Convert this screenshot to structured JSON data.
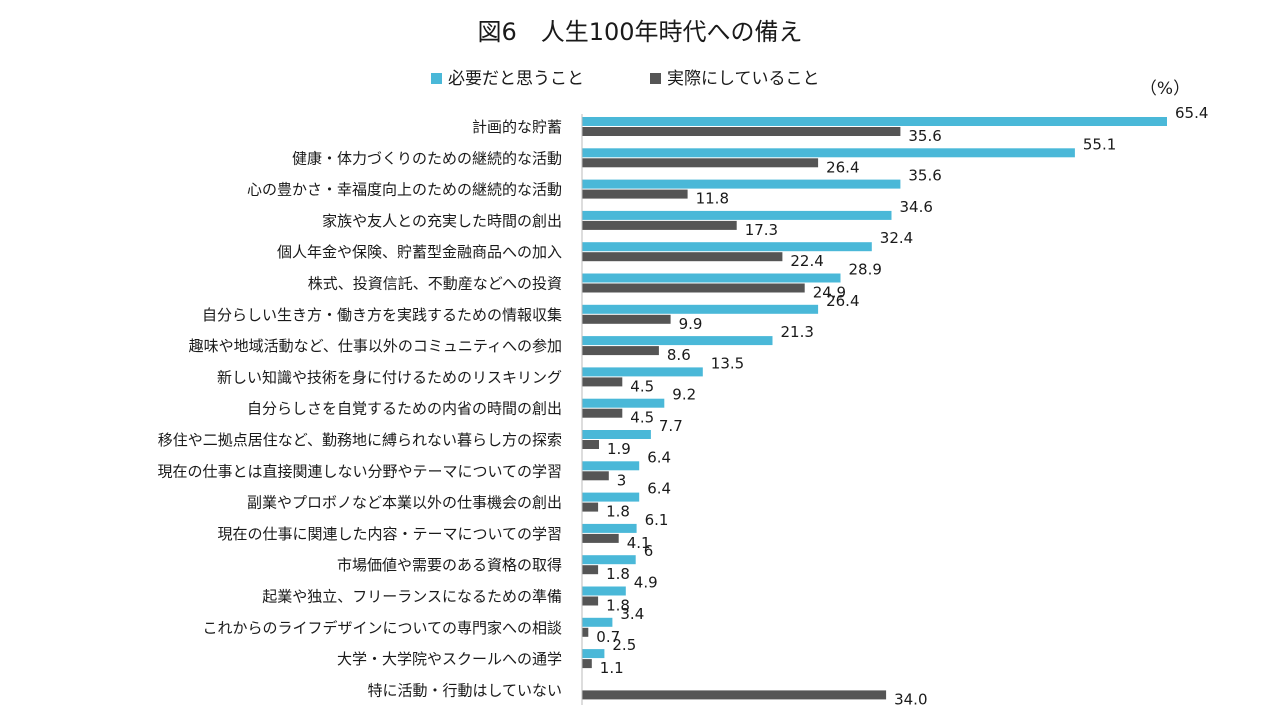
{
  "chart_data": {
    "type": "bar",
    "orientation": "horizontal",
    "title": "図6　人生100年時代への備え",
    "unit_label": "（%）",
    "legend_position": "top",
    "xlim": [
      0,
      65.4
    ],
    "categories": [
      "計画的な貯蓄",
      "健康・体力づくりのための継続的な活動",
      "心の豊かさ・幸福度向上のための継続的な活動",
      "家族や友人との充実した時間の創出",
      "個人年金や保険、貯蓄型金融商品への加入",
      "株式、投資信託、不動産などへの投資",
      "自分らしい生き方・働き方を実践するための情報収集",
      "趣味や地域活動など、仕事以外のコミュニティへの参加",
      "新しい知識や技術を身に付けるためのリスキリング",
      "自分らしさを自覚するための内省の時間の創出",
      "移住や二拠点居住など、勤務地に縛られない暮らし方の探索",
      "現在の仕事とは直接関連しない分野やテーマについての学習",
      "副業やプロボノなど本業以外の仕事機会の創出",
      "現在の仕事に関連した内容・テーマについての学習",
      "市場価値や需要のある資格の取得",
      "起業や独立、フリーランスになるための準備",
      "これからのライフデザインについての専門家への相談",
      "大学・大学院やスクールへの通学",
      "特に活動・行動はしていない"
    ],
    "series": [
      {
        "name": "必要だと思うこと",
        "color": "#4ab8d8",
        "values": [
          65.4,
          55.1,
          35.6,
          34.6,
          32.4,
          28.9,
          26.4,
          21.3,
          13.5,
          9.2,
          7.7,
          6.4,
          6.4,
          6.1,
          6,
          4.9,
          3.4,
          2.5,
          null
        ],
        "labels": [
          "65.4",
          "55.1",
          "35.6",
          "34.6",
          "32.4",
          "28.9",
          "26.4",
          "21.3",
          "13.5",
          "9.2",
          "7.7",
          "6.4",
          "6.4",
          "6.1",
          "6",
          "4.9",
          "3.4",
          "2.5",
          ""
        ]
      },
      {
        "name": "実際にしていること",
        "color": "#555555",
        "values": [
          35.6,
          26.4,
          11.8,
          17.3,
          22.4,
          24.9,
          9.9,
          8.6,
          4.5,
          4.5,
          1.9,
          3,
          1.8,
          4.1,
          1.8,
          1.8,
          0.7,
          1.1,
          34.0
        ],
        "labels": [
          "35.6",
          "26.4",
          "11.8",
          "17.3",
          "22.4",
          "24.9",
          "9.9",
          "8.6",
          "4.5",
          "4.5",
          "1.9",
          "3",
          "1.8",
          "4.1",
          "1.8",
          "1.8",
          "0.7",
          "1.1",
          "34.0"
        ]
      }
    ]
  }
}
